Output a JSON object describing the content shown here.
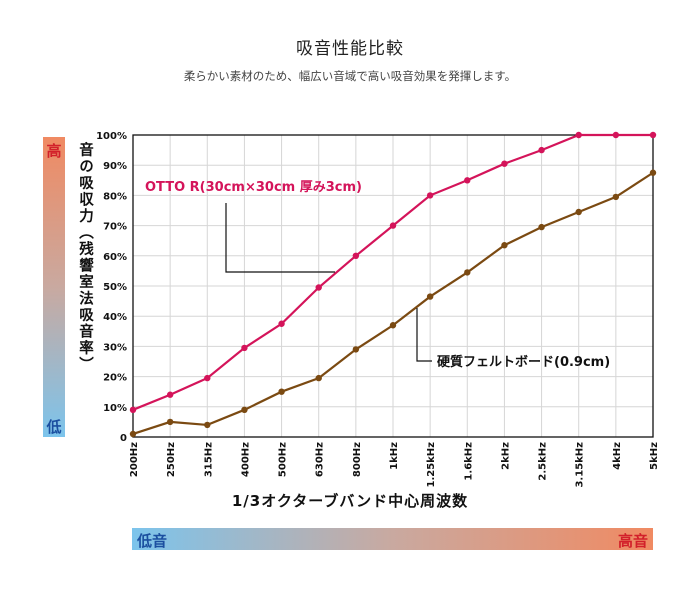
{
  "header": {
    "title": "吸音性能比較",
    "subtitle": "柔らかい素材のため、幅広い音域で高い吸音効果を発揮します。"
  },
  "side_scale": {
    "high": "高",
    "low": "低"
  },
  "freq_scale": {
    "low": "低音",
    "high": "高音"
  },
  "colors": {
    "otto": "#d4145a",
    "felt": "#7b4a12"
  },
  "chart_data": {
    "type": "line",
    "title": "吸音性能比較",
    "ylabel": "音の吸収力（残響室法吸音率）",
    "xlabel": "1/3オクターブバンド中心周波数",
    "ylim": [
      0,
      100
    ],
    "grid": true,
    "categories": [
      "200Hz",
      "250Hz",
      "315Hz",
      "400Hz",
      "500Hz",
      "630Hz",
      "800Hz",
      "1kHz",
      "1.25kHz",
      "1.6kHz",
      "2kHz",
      "2.5kHz",
      "3.15kHz",
      "4kHz",
      "5kHz"
    ],
    "yticks": [
      "0",
      "10%",
      "20%",
      "30%",
      "40%",
      "50%",
      "60%",
      "70%",
      "80%",
      "90%",
      "100%"
    ],
    "series": [
      {
        "name": "OTTO R(30cm×30cm 厚み3cm)",
        "values": [
          9,
          14,
          19.5,
          29.5,
          37.5,
          49.5,
          60,
          70,
          80,
          85,
          90.5,
          95,
          100,
          100,
          100
        ]
      },
      {
        "name": "硬質フェルトボード(0.9cm)",
        "values": [
          1,
          5,
          4,
          9,
          15,
          19.5,
          29,
          37,
          46.5,
          54.5,
          63.5,
          69.5,
          74.5,
          79.5,
          87.5
        ]
      }
    ]
  }
}
